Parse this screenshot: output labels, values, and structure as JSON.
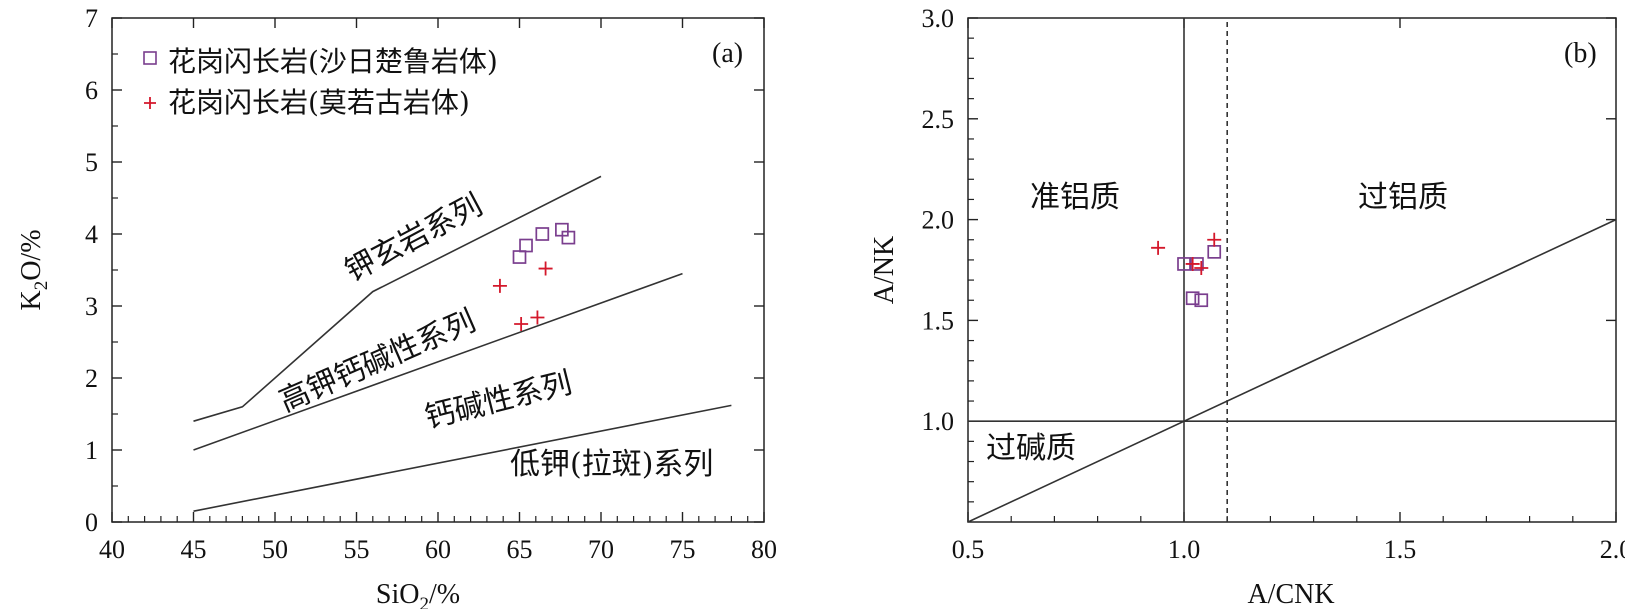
{
  "chart_data": [
    {
      "panel": "(a)",
      "type": "scatter",
      "xlabel": "SiO2/%",
      "ylabel": "K2O/%",
      "xlim": [
        40,
        80
      ],
      "ylim": [
        0,
        7
      ],
      "xticks": [
        "40",
        "45",
        "50",
        "55",
        "60",
        "65",
        "70",
        "75",
        "80"
      ],
      "yticks": [
        "0",
        "1",
        "2",
        "3",
        "4",
        "5",
        "6",
        "7"
      ],
      "legend": {
        "position": "top-left",
        "entries": [
          {
            "marker": "square",
            "color": "#7a3e8e",
            "label": "花岗闪长岩(沙日楚鲁岩体)"
          },
          {
            "marker": "plus",
            "color": "#d4182b",
            "label": "花岗闪长岩(莫若古岩体)"
          }
        ]
      },
      "boundary_lines": [
        [
          [
            45,
            1.4
          ],
          [
            48,
            1.6
          ],
          [
            56,
            3.2
          ],
          [
            70,
            4.8
          ]
        ],
        [
          [
            45,
            1.0
          ],
          [
            75,
            3.45
          ]
        ],
        [
          [
            45,
            0.15
          ],
          [
            78,
            1.62
          ]
        ]
      ],
      "regions": [
        "钾玄岩系列",
        "高钾钙碱性系列",
        "钙碱性系列",
        "低钾(拉斑)系列"
      ],
      "series": [
        {
          "name": "花岗闪长岩(沙日楚鲁岩体)",
          "marker": "square",
          "color": "#7a3e8e",
          "points": [
            [
              65.0,
              3.68
            ],
            [
              65.4,
              3.84
            ],
            [
              66.4,
              4.0
            ],
            [
              67.6,
              4.06
            ],
            [
              68.0,
              3.95
            ]
          ]
        },
        {
          "name": "花岗闪长岩(莫若古岩体)",
          "marker": "plus",
          "color": "#d4182b",
          "points": [
            [
              63.8,
              3.28
            ],
            [
              65.1,
              2.75
            ],
            [
              66.1,
              2.84
            ],
            [
              66.6,
              3.52
            ]
          ]
        }
      ]
    },
    {
      "panel": "(b)",
      "type": "scatter",
      "xlabel": "A/CNK",
      "ylabel": "A/NK",
      "xlim": [
        0.5,
        2.0
      ],
      "ylim": [
        0.5,
        3.0
      ],
      "xticks": [
        "0.5",
        "1.0",
        "1.5",
        "2.0"
      ],
      "yticks": [
        "1.0",
        "1.5",
        "2.0",
        "2.5",
        "3.0"
      ],
      "boundary_lines": [
        {
          "style": "solid",
          "points": [
            [
              1.0,
              0.5
            ],
            [
              1.0,
              3.0
            ]
          ]
        },
        {
          "style": "dashed",
          "points": [
            [
              1.1,
              0.5
            ],
            [
              1.1,
              3.0
            ]
          ]
        },
        {
          "style": "solid",
          "points": [
            [
              0.5,
              1.0
            ],
            [
              2.0,
              1.0
            ]
          ]
        },
        {
          "style": "solid",
          "points": [
            [
              0.5,
              0.5
            ],
            [
              2.0,
              2.0
            ]
          ]
        }
      ],
      "regions": [
        "准铝质",
        "过铝质",
        "过碱质"
      ],
      "series": [
        {
          "name": "花岗闪长岩(沙日楚鲁岩体)",
          "marker": "square",
          "color": "#7a3e8e",
          "points": [
            [
              1.0,
              1.78
            ],
            [
              1.02,
              1.61
            ],
            [
              1.03,
              1.78
            ],
            [
              1.04,
              1.6
            ],
            [
              1.07,
              1.84
            ]
          ]
        },
        {
          "name": "花岗闪长岩(莫若古岩体)",
          "marker": "plus",
          "color": "#d4182b",
          "points": [
            [
              0.94,
              1.86
            ],
            [
              1.02,
              1.78
            ],
            [
              1.04,
              1.76
            ],
            [
              1.07,
              1.9
            ]
          ]
        }
      ]
    }
  ]
}
